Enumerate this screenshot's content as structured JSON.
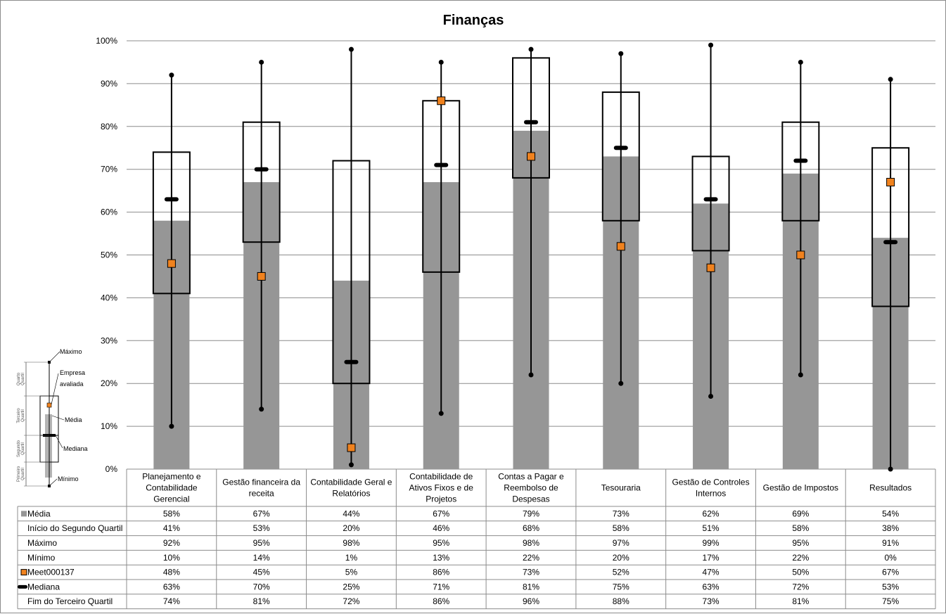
{
  "chart_data": {
    "type": "bar",
    "title": "Finanças",
    "ylim": [
      0,
      100
    ],
    "y_ticks": [
      "0%",
      "10%",
      "20%",
      "30%",
      "40%",
      "50%",
      "60%",
      "70%",
      "80%",
      "90%",
      "100%"
    ],
    "grid": true,
    "categories": [
      [
        "Planejamento e",
        "Contabilidade",
        "Gerencial"
      ],
      [
        "Gestão financeira da",
        "receita"
      ],
      [
        "Contabilidade Geral e",
        "Relatórios"
      ],
      [
        "Contabilidade de",
        "Ativos Fixos e de",
        "Projetos"
      ],
      [
        "Contas a Pagar e",
        "Reembolso de",
        "Despesas"
      ],
      [
        "Tesouraria"
      ],
      [
        "Gestão de Controles",
        "Internos"
      ],
      [
        "Gestão de Impostos"
      ],
      [
        "Resultados"
      ]
    ],
    "series": [
      {
        "name": "Média",
        "values": [
          58,
          67,
          44,
          67,
          79,
          73,
          62,
          69,
          54
        ],
        "labels": [
          "58%",
          "67%",
          "44%",
          "67%",
          "79%",
          "73%",
          "62%",
          "69%",
          "54%"
        ],
        "color": "#969696"
      },
      {
        "name": "Início do Segundo Quartil",
        "values": [
          41,
          53,
          20,
          46,
          68,
          58,
          51,
          58,
          38
        ],
        "labels": [
          "41%",
          "53%",
          "20%",
          "46%",
          "68%",
          "58%",
          "51%",
          "58%",
          "38%"
        ]
      },
      {
        "name": "Máximo",
        "values": [
          92,
          95,
          98,
          95,
          98,
          97,
          99,
          95,
          91
        ],
        "labels": [
          "92%",
          "95%",
          "98%",
          "95%",
          "98%",
          "97%",
          "99%",
          "95%",
          "91%"
        ]
      },
      {
        "name": "Mínimo",
        "values": [
          10,
          14,
          1,
          13,
          22,
          20,
          17,
          22,
          0
        ],
        "labels": [
          "10%",
          "14%",
          "1%",
          "13%",
          "22%",
          "20%",
          "17%",
          "22%",
          "0%"
        ]
      },
      {
        "name": "Meet000137",
        "values": [
          48,
          45,
          5,
          86,
          73,
          52,
          47,
          50,
          67
        ],
        "labels": [
          "48%",
          "45%",
          "5%",
          "86%",
          "73%",
          "52%",
          "47%",
          "50%",
          "67%"
        ],
        "color": "#f0821e"
      },
      {
        "name": "Mediana",
        "values": [
          63,
          70,
          25,
          71,
          81,
          75,
          63,
          72,
          53
        ],
        "labels": [
          "63%",
          "70%",
          "25%",
          "71%",
          "81%",
          "75%",
          "63%",
          "72%",
          "53%"
        ],
        "color": "#000000"
      },
      {
        "name": "Fim do Terceiro Quartil",
        "values": [
          74,
          81,
          72,
          86,
          96,
          88,
          73,
          81,
          75
        ],
        "labels": [
          "74%",
          "81%",
          "72%",
          "86%",
          "96%",
          "88%",
          "73%",
          "81%",
          "75%"
        ]
      }
    ]
  },
  "legend_guide": {
    "labels": {
      "maximo": "Máximo",
      "empresa": [
        "Empresa",
        "avaliada"
      ],
      "media": "Média",
      "mediana": "Mediana",
      "minimo": "Mínimo"
    },
    "quartiles": {
      "q4": [
        "Quarto",
        "Quartil"
      ],
      "q3": [
        "Terceiro",
        "Quartil"
      ],
      "q2": [
        "Segundo",
        "Quartil"
      ],
      "q1": [
        "Primeiro",
        "Quartil"
      ]
    }
  }
}
